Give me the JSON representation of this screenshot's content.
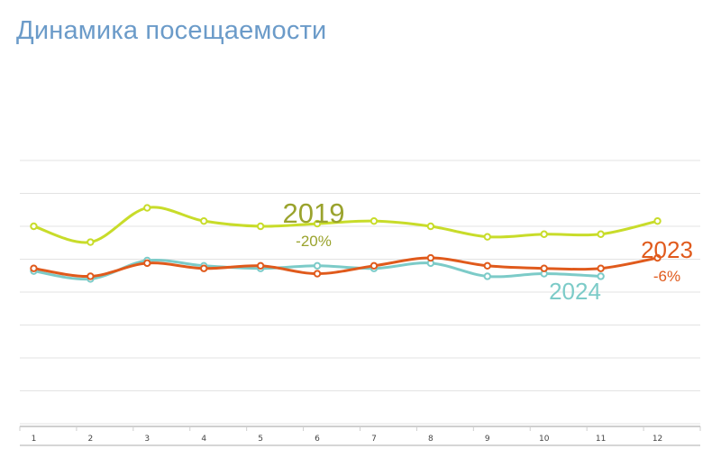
{
  "title": "Динамика посещаемости",
  "chart_data": {
    "type": "line",
    "x": [
      1,
      2,
      3,
      4,
      5,
      6,
      7,
      8,
      9,
      10,
      11,
      12
    ],
    "ylim": [
      0,
      100
    ],
    "grid": true,
    "series": [
      {
        "name": "2019",
        "change": "-20%",
        "color": "#c8dc2a",
        "label_color": "#9aa32d",
        "values": [
          75,
          69,
          82,
          77,
          75,
          76,
          77,
          75,
          71,
          72,
          72,
          77
        ]
      },
      {
        "name": "2024",
        "change": "",
        "color": "#7ccbc8",
        "label_color": "#7ccbc8",
        "values": [
          58,
          55,
          62,
          60,
          59,
          60,
          59,
          61,
          56,
          57,
          56,
          null
        ]
      },
      {
        "name": "2023",
        "change": "-6%",
        "color": "#e05a1c",
        "label_color": "#e05a1c",
        "values": [
          59,
          56,
          61,
          59,
          60,
          57,
          60,
          63,
          60,
          59,
          59,
          63
        ]
      }
    ]
  }
}
